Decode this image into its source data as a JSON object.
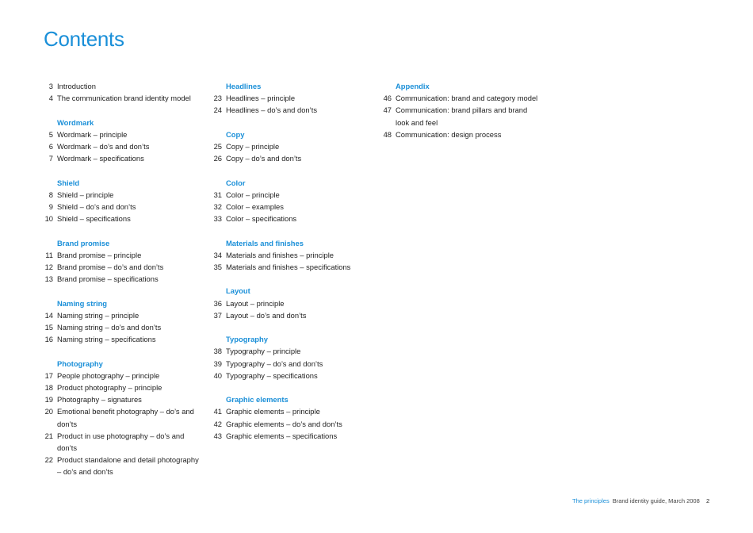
{
  "title": "Contents",
  "accent_color": "#1a8fd8",
  "columns": [
    [
      {
        "type": "item",
        "num": "3",
        "text": "Introduction"
      },
      {
        "type": "item",
        "num": "4",
        "text": "The communication brand identity model"
      },
      {
        "type": "blank"
      },
      {
        "type": "heading",
        "text": "Wordmark"
      },
      {
        "type": "item",
        "num": "5",
        "text": "Wordmark – principle"
      },
      {
        "type": "item",
        "num": "6",
        "text": "Wordmark – do’s and don’ts"
      },
      {
        "type": "item",
        "num": "7",
        "text": "Wordmark – specifications"
      },
      {
        "type": "blank"
      },
      {
        "type": "heading",
        "text": "Shield"
      },
      {
        "type": "item",
        "num": "8",
        "text": "Shield – principle"
      },
      {
        "type": "item",
        "num": "9",
        "text": "Shield – do’s and don’ts"
      },
      {
        "type": "item",
        "num": "10",
        "text": "Shield – specifications"
      },
      {
        "type": "blank"
      },
      {
        "type": "heading",
        "text": "Brand promise"
      },
      {
        "type": "item",
        "num": "11",
        "text": "Brand promise – principle"
      },
      {
        "type": "item",
        "num": "12",
        "text": "Brand promise – do’s and don’ts"
      },
      {
        "type": "item",
        "num": "13",
        "text": "Brand promise – specifications"
      },
      {
        "type": "blank"
      },
      {
        "type": "heading",
        "text": "Naming string"
      },
      {
        "type": "item",
        "num": "14",
        "text": "Naming string – principle"
      },
      {
        "type": "item",
        "num": "15",
        "text": "Naming string – do’s and don’ts"
      },
      {
        "type": "item",
        "num": "16",
        "text": "Naming string – specifications"
      },
      {
        "type": "blank"
      },
      {
        "type": "heading",
        "text": "Photography"
      },
      {
        "type": "item",
        "num": "17",
        "text": "People photography – principle"
      },
      {
        "type": "item",
        "num": "18",
        "text": "Product photography – principle"
      },
      {
        "type": "item",
        "num": "19",
        "text": "Photography – signatures"
      },
      {
        "type": "item",
        "num": "20",
        "text": "Emotional benefit photography – do’s and"
      },
      {
        "type": "cont",
        "text": "don’ts"
      },
      {
        "type": "item",
        "num": "21",
        "text": "Product in use photography – do’s and don’ts"
      },
      {
        "type": "item",
        "num": "22",
        "text": "Product standalone and detail photography"
      },
      {
        "type": "cont",
        "text": "– do’s and don’ts"
      }
    ],
    [
      {
        "type": "heading",
        "text": "Headlines"
      },
      {
        "type": "item",
        "num": "23",
        "text": "Headlines – principle"
      },
      {
        "type": "item",
        "num": "24",
        "text": "Headlines – do’s and don’ts"
      },
      {
        "type": "blank"
      },
      {
        "type": "heading",
        "text": "Copy"
      },
      {
        "type": "item",
        "num": "25",
        "text": "Copy – principle"
      },
      {
        "type": "item",
        "num": "26",
        "text": "Copy – do’s and don’ts"
      },
      {
        "type": "blank"
      },
      {
        "type": "heading",
        "text": "Color"
      },
      {
        "type": "item",
        "num": "31",
        "text": "Color – principle"
      },
      {
        "type": "item",
        "num": "32",
        "text": "Color – examples"
      },
      {
        "type": "item",
        "num": "33",
        "text": "Color – specifications"
      },
      {
        "type": "blank"
      },
      {
        "type": "heading",
        "text": "Materials and finishes"
      },
      {
        "type": "item",
        "num": "34",
        "text": "Materials and finishes – principle"
      },
      {
        "type": "item",
        "num": "35",
        "text": "Materials and finishes – specifications"
      },
      {
        "type": "blank"
      },
      {
        "type": "heading",
        "text": "Layout"
      },
      {
        "type": "item",
        "num": "36",
        "text": "Layout – principle"
      },
      {
        "type": "item",
        "num": "37",
        "text": "Layout – do’s and don’ts"
      },
      {
        "type": "blank"
      },
      {
        "type": "heading",
        "text": "Typography"
      },
      {
        "type": "item",
        "num": "38",
        "text": "Typography – principle"
      },
      {
        "type": "item",
        "num": "39",
        "text": "Typography – do’s and don’ts"
      },
      {
        "type": "item",
        "num": "40",
        "text": "Typography – specifications"
      },
      {
        "type": "blank"
      },
      {
        "type": "heading",
        "text": "Graphic elements"
      },
      {
        "type": "item",
        "num": "41",
        "text": "Graphic elements – principle"
      },
      {
        "type": "item",
        "num": "42",
        "text": "Graphic elements – do’s and don’ts"
      },
      {
        "type": "item",
        "num": "43",
        "text": "Graphic elements – specifications"
      }
    ],
    [
      {
        "type": "heading",
        "text": "Appendix"
      },
      {
        "type": "item",
        "num": "46",
        "text": "Communication: brand and category model"
      },
      {
        "type": "item",
        "num": "47",
        "text": "Communication: brand pillars and brand"
      },
      {
        "type": "cont",
        "text": "look and feel"
      },
      {
        "type": "item",
        "num": "48",
        "text": "Communication: design process"
      }
    ]
  ],
  "footer": {
    "section": "The principles",
    "doc": "Brand identity guide, March 2008",
    "page": "2"
  }
}
